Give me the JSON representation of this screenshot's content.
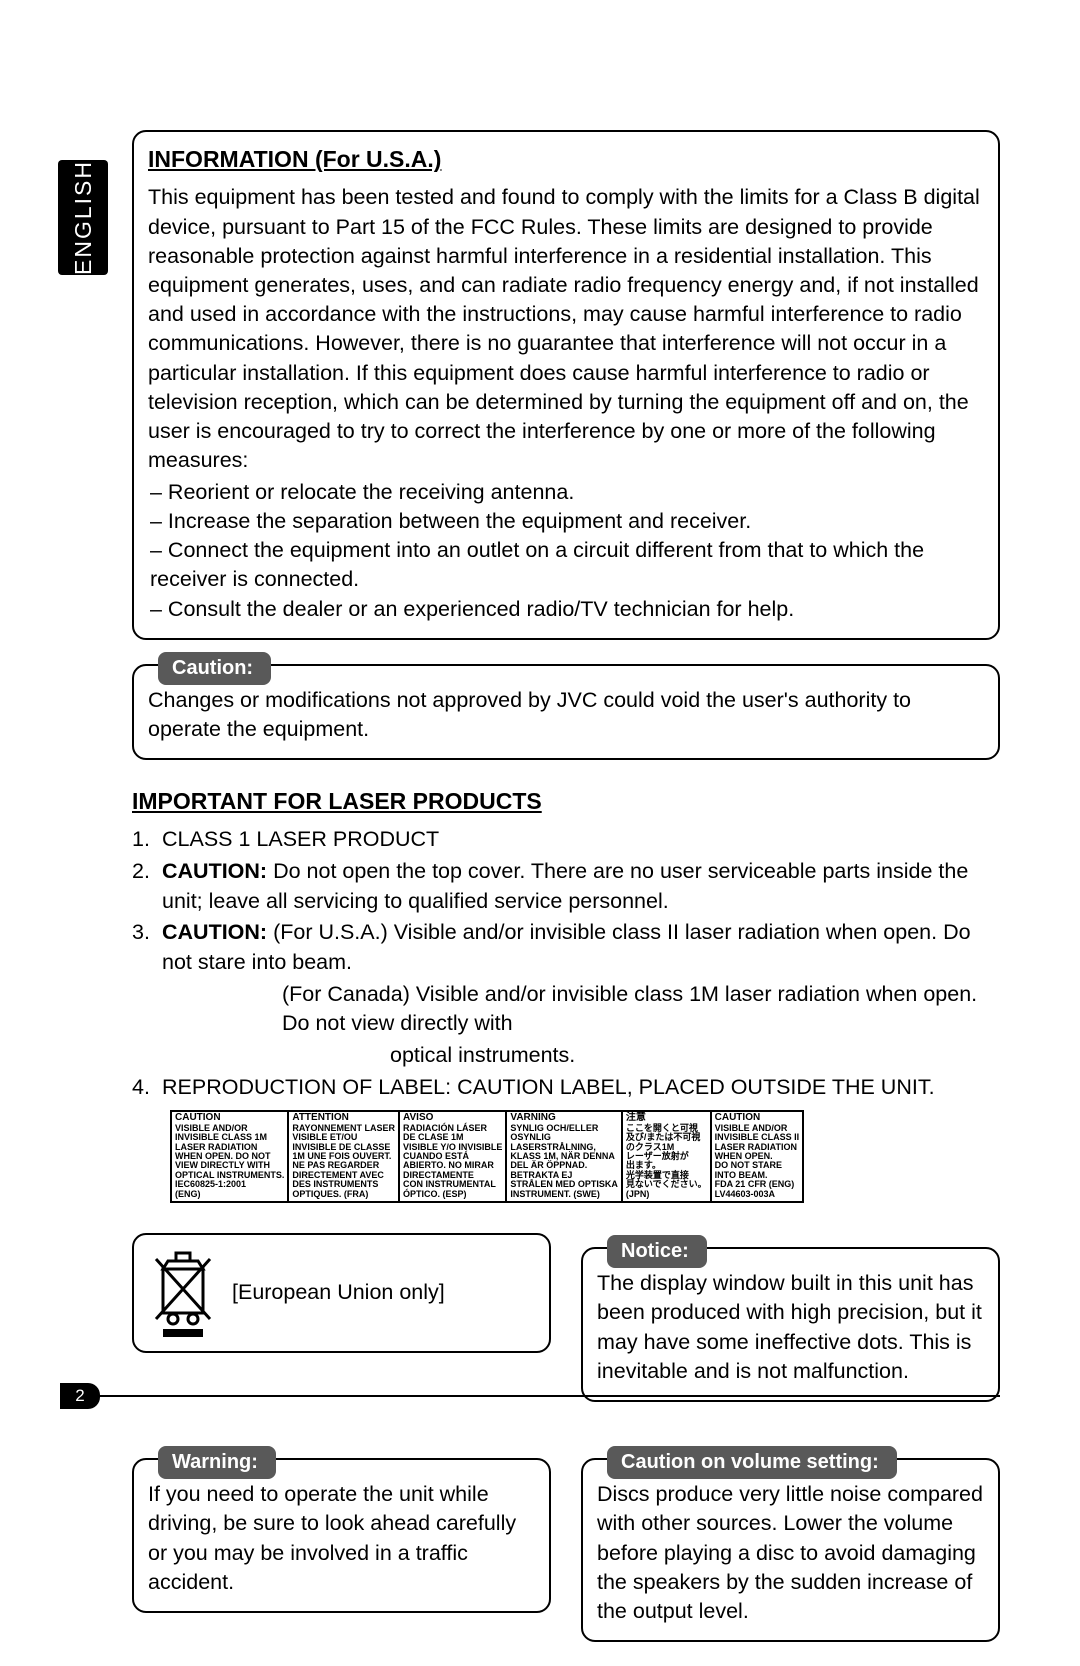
{
  "language": "ENGLISH",
  "page_number": "2",
  "info_box": {
    "title": "INFORMATION (For U.S.A.)",
    "para": "This equipment has been tested and found to comply with the limits for a Class B digital device, pursuant to Part 15 of the FCC Rules. These limits are designed to provide reasonable protection against harmful interference in a residential installation. This equipment generates, uses, and can radiate radio frequency energy and, if not installed and used in accordance with the instructions, may cause harmful interference to radio communications. However, there is no guarantee that interference will not occur in a particular installation. If this equipment does cause harmful interference to radio or television reception, which can be determined by turning the equipment off and on, the user is encouraged to try to correct the interference by one or more of the following measures:",
    "bullets": [
      "– Reorient or relocate the receiving antenna.",
      "– Increase the separation between the equipment and receiver.",
      "– Connect the equipment into an outlet on a circuit different from that to which the receiver is connected.",
      "– Consult the dealer or an experienced radio/TV technician for help."
    ]
  },
  "caution_box": {
    "pill": "Caution:",
    "text": "Changes or modifications not approved by JVC could void the user's authority to operate the equipment."
  },
  "laser": {
    "heading": "IMPORTANT FOR LASER PRODUCTS",
    "items": {
      "n1": "CLASS 1 LASER PRODUCT",
      "n2_bold": "CAUTION:",
      "n2_rest": "  Do not open the top cover. There are no user serviceable parts inside the unit; leave all servicing to qualified service personnel.",
      "n3_bold": "CAUTION:",
      "n3_usa": "  (For U.S.A.)     Visible and/or invisible class II laser radiation when open. Do not stare into beam.",
      "n3_can1": "(For Canada)  Visible and/or invisible class 1M laser radiation when open. Do not view directly with",
      "n3_can2": "optical instruments.",
      "n4": "REPRODUCTION OF LABEL: CAUTION LABEL, PLACED OUTSIDE THE UNIT."
    }
  },
  "label_table": {
    "columns": [
      {
        "h": "CAUTION",
        "rows": [
          "VISIBLE AND/OR",
          "INVISIBLE CLASS 1M",
          "LASER RADIATION",
          "WHEN OPEN. DO NOT",
          "VIEW DIRECTLY WITH",
          "OPTICAL INSTRUMENTS.",
          "IEC60825-1:2001",
          "                              (ENG)"
        ]
      },
      {
        "h": "ATTENTION",
        "rows": [
          "RAYONNEMENT LASER",
          "VISIBLE ET/OU",
          "INVISIBLE DE CLASSE",
          "1M UNE FOIS OUVERT.",
          "NE PAS REGARDER",
          "DIRECTEMENT AVEC",
          "DES INSTRUMENTS",
          "OPTIQUES.            (FRA)"
        ]
      },
      {
        "h": "AVISO",
        "rows": [
          "RADIACIÓN LÁSER",
          "DE CLASE 1M",
          "VISIBLE Y/O INVISIBLE",
          "CUANDO ESTÁ",
          "ABIERTO. NO MIRAR",
          "DIRECTAMENTE",
          "CON INSTRUMENTAL",
          "ÓPTICO.               (ESP)"
        ]
      },
      {
        "h": "VARNING",
        "rows": [
          "SYNLIG OCH/ELLER",
          "OSYNLIG",
          "LASERSTRÅLNING,",
          "KLASS 1M, NÄR DENNA",
          "DEL ÄR ÖPPNAD.",
          "BETRAKTA EJ",
          "STRÅLEN MED OPTISKA",
          "INSTRUMENT.      (SWE)"
        ]
      },
      {
        "h": "注意",
        "rows": [
          "ここを開くと可視",
          "及び/または不可視",
          "のクラス1M",
          "レーザー放射が",
          "出ます。",
          "光学装置で直接",
          "見ないでください。",
          "                              (JPN)"
        ]
      },
      {
        "h": "CAUTION",
        "rows": [
          "VISIBLE AND/OR",
          "INVISIBLE CLASS II",
          "LASER RADIATION",
          "WHEN OPEN.",
          "DO NOT STARE",
          "INTO BEAM.",
          "FDA 21 CFR   (ENG)",
          "LV44603-003A"
        ]
      }
    ]
  },
  "eu_box": {
    "text": "[European Union only]"
  },
  "notice_box": {
    "pill": "Notice:",
    "text": "The display window built in this unit has been produced with high precision, but it may have some ineffective dots. This is inevitable and is not malfunction."
  },
  "warning_box": {
    "pill": "Warning:",
    "text": "If you need to operate the unit while driving, be sure to look ahead carefully or you may be involved in a traffic accident."
  },
  "volume_box": {
    "pill": "Caution on volume setting:",
    "text": "Discs produce very little noise compared with other sources. Lower the volume before playing a disc to avoid damaging the speakers by the sudden increase of the output level."
  }
}
